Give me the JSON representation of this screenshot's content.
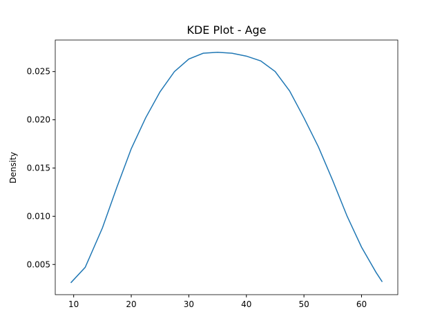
{
  "chart_data": {
    "type": "line",
    "title": "KDE Plot - Age",
    "ylabel": "Density",
    "x": [
      9.5,
      12,
      15,
      17.5,
      20,
      22.5,
      25,
      27.5,
      30,
      32.5,
      35,
      37.5,
      40,
      42.5,
      45,
      47.5,
      50,
      52.5,
      55,
      57.5,
      60,
      62.5,
      63.6
    ],
    "series": [
      {
        "color": "#1f77b4",
        "values": [
          0.0031,
          0.0047,
          0.0088,
          0.013,
          0.017,
          0.0202,
          0.0229,
          0.025,
          0.0263,
          0.0269,
          0.027,
          0.0269,
          0.0266,
          0.0261,
          0.025,
          0.023,
          0.0202,
          0.0172,
          0.0137,
          0.01,
          0.0068,
          0.0042,
          0.0032
        ]
      }
    ],
    "xlim": [
      6.8,
      66.3
    ],
    "xticks": [
      10,
      20,
      30,
      40,
      50,
      60
    ],
    "ylim": [
      0.00187,
      0.02827
    ],
    "yticks": [
      0.005,
      {
        "value": 0.01,
        "label": "0.010"
      },
      0.015,
      {
        "value": 0.02,
        "label": "0.020"
      },
      0.025
    ],
    "grid": false
  }
}
